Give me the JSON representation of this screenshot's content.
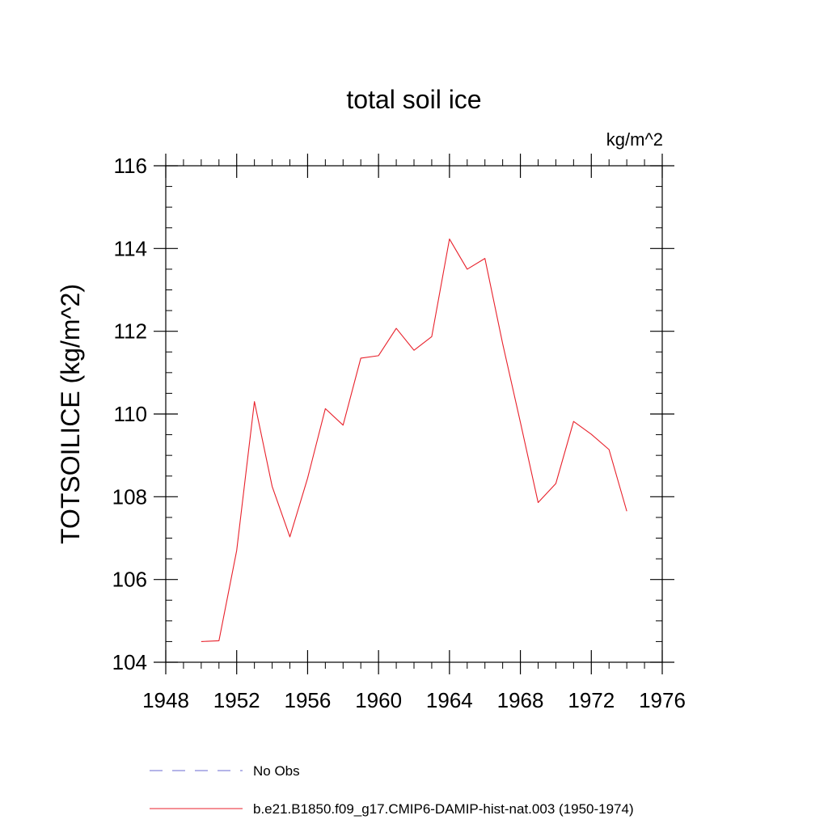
{
  "chart_data": {
    "type": "line",
    "title": "total soil ice",
    "units_label": "kg/m^2",
    "ylabel": "TOTSOILICE  (kg/m^2)",
    "xlabel": "",
    "xlim": [
      1948,
      1976
    ],
    "ylim": [
      104,
      116
    ],
    "x_ticks": [
      1948,
      1952,
      1956,
      1960,
      1964,
      1968,
      1972,
      1976
    ],
    "y_ticks": [
      104,
      106,
      108,
      110,
      112,
      114,
      116
    ],
    "grid": false,
    "legend": {
      "placement": "bottom",
      "entries": [
        {
          "label": "No Obs",
          "color": "#6a6ad0",
          "style": "dashed"
        },
        {
          "label": "b.e21.B1850.f09_g17.CMIP6-DAMIP-hist-nat.003 (1950-1974)",
          "color": "#e8212b",
          "style": "solid"
        }
      ]
    },
    "series": [
      {
        "name": "b.e21.B1850.f09_g17.CMIP6-DAMIP-hist-nat.003 (1950-1974)",
        "color": "#e8212b",
        "x": [
          1950,
          1951,
          1952,
          1953,
          1954,
          1955,
          1956,
          1957,
          1958,
          1959,
          1960,
          1961,
          1962,
          1963,
          1964,
          1965,
          1966,
          1967,
          1968,
          1969,
          1970,
          1971,
          1972,
          1973,
          1974
        ],
        "values": [
          104.5,
          104.52,
          106.7,
          110.3,
          108.25,
          107.03,
          108.45,
          110.13,
          109.73,
          111.35,
          111.41,
          112.07,
          111.54,
          111.87,
          114.23,
          113.5,
          113.76,
          111.7,
          109.8,
          107.86,
          108.32,
          109.82,
          109.51,
          109.14,
          107.65
        ]
      }
    ]
  }
}
